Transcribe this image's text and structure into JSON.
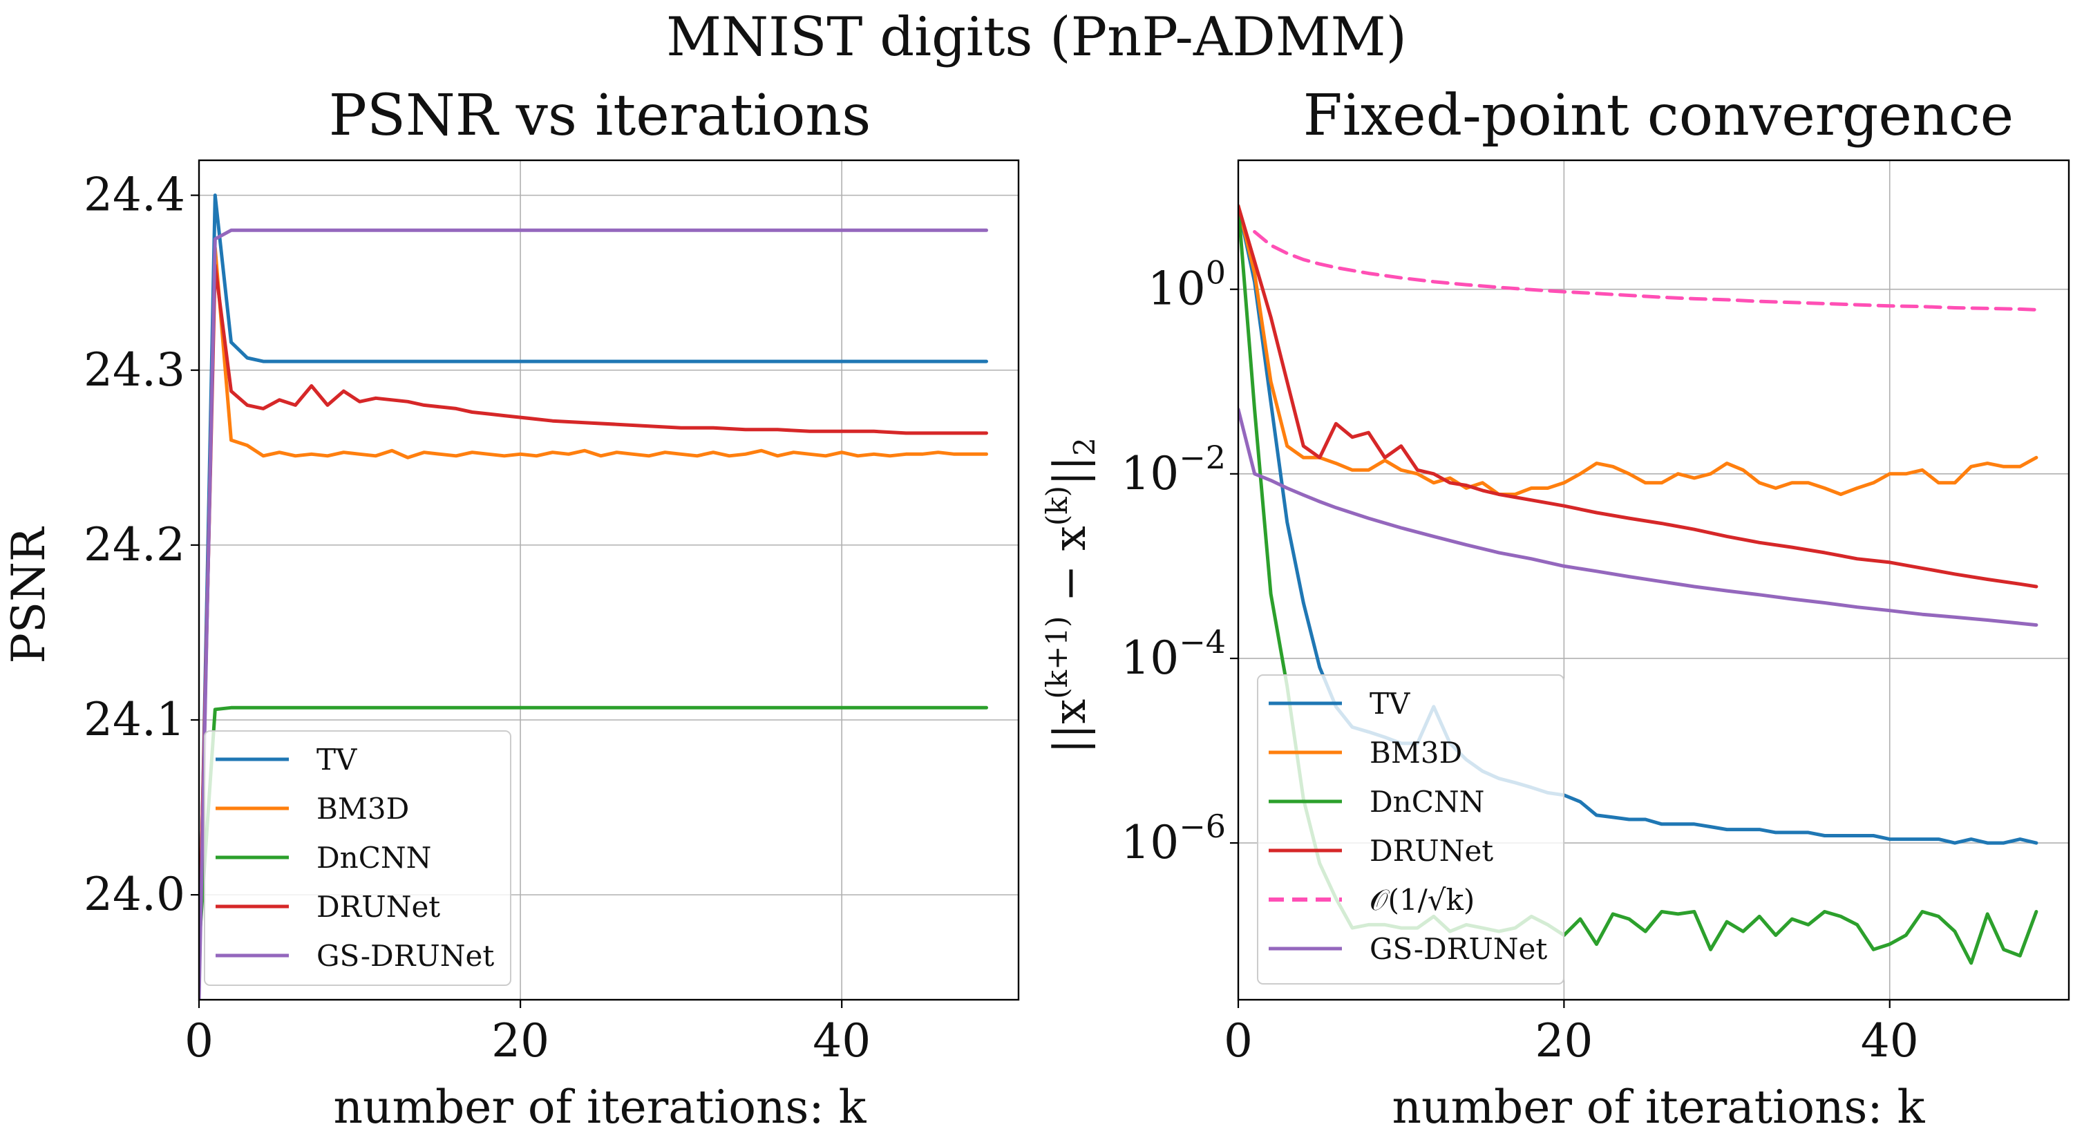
{
  "suptitle": "MNIST digits (PnP-ADMM)",
  "colors": {
    "TV": "#1f77b4",
    "BM3D": "#ff7f0e",
    "DnCNN": "#2ca02c",
    "DRUNet": "#d62728",
    "GS-DRUNet": "#9467bd",
    "ref": "#ff4fb5"
  },
  "chart_data": [
    {
      "type": "line",
      "title": "PSNR vs iterations",
      "xlabel": "number of iterations: k",
      "ylabel": "PSNR",
      "xlim": [
        0,
        51
      ],
      "ylim": [
        23.94,
        24.42
      ],
      "xticks": [
        0,
        20,
        40
      ],
      "yticks": [
        24.0,
        24.1,
        24.2,
        24.3,
        24.4
      ],
      "ytick_labels": [
        "24.0",
        "24.1",
        "24.2",
        "24.3",
        "24.4"
      ],
      "grid": true,
      "legend_placement": "lower-left",
      "series": [
        {
          "name": "TV",
          "x": [
            0,
            1,
            2,
            3,
            4,
            5,
            6,
            10,
            20,
            30,
            40,
            49
          ],
          "y": [
            23.95,
            24.4,
            24.316,
            24.307,
            24.305,
            24.305,
            24.305,
            24.305,
            24.305,
            24.305,
            24.305,
            24.305
          ]
        },
        {
          "name": "BM3D",
          "x": [
            0,
            1,
            2,
            3,
            4,
            5,
            6,
            7,
            8,
            9,
            10,
            11,
            12,
            13,
            14,
            15,
            16,
            17,
            18,
            19,
            20,
            21,
            22,
            23,
            24,
            25,
            26,
            27,
            28,
            29,
            30,
            31,
            32,
            33,
            34,
            35,
            36,
            37,
            38,
            39,
            40,
            41,
            42,
            43,
            44,
            45,
            46,
            47,
            48,
            49
          ],
          "y": [
            23.95,
            24.37,
            24.26,
            24.257,
            24.251,
            24.253,
            24.251,
            24.252,
            24.251,
            24.253,
            24.252,
            24.251,
            24.254,
            24.25,
            24.253,
            24.252,
            24.251,
            24.253,
            24.252,
            24.251,
            24.252,
            24.251,
            24.253,
            24.252,
            24.254,
            24.251,
            24.253,
            24.252,
            24.251,
            24.253,
            24.252,
            24.251,
            24.253,
            24.251,
            24.252,
            24.254,
            24.251,
            24.253,
            24.252,
            24.251,
            24.253,
            24.251,
            24.252,
            24.251,
            24.252,
            24.252,
            24.253,
            24.252,
            24.252,
            24.252
          ]
        },
        {
          "name": "DnCNN",
          "x": [
            0,
            1,
            2,
            3,
            10,
            20,
            30,
            40,
            49
          ],
          "y": [
            23.97,
            24.106,
            24.107,
            24.107,
            24.107,
            24.107,
            24.107,
            24.107,
            24.107
          ]
        },
        {
          "name": "DRUNet",
          "x": [
            0,
            1,
            2,
            3,
            4,
            5,
            6,
            7,
            8,
            9,
            10,
            11,
            12,
            13,
            14,
            15,
            16,
            17,
            18,
            19,
            20,
            22,
            24,
            26,
            28,
            30,
            32,
            34,
            36,
            38,
            40,
            42,
            44,
            46,
            48,
            49
          ],
          "y": [
            23.96,
            24.36,
            24.288,
            24.28,
            24.278,
            24.283,
            24.28,
            24.291,
            24.28,
            24.288,
            24.282,
            24.284,
            24.283,
            24.282,
            24.28,
            24.279,
            24.278,
            24.276,
            24.275,
            24.274,
            24.273,
            24.271,
            24.27,
            24.269,
            24.268,
            24.267,
            24.267,
            24.266,
            24.266,
            24.265,
            24.265,
            24.265,
            24.264,
            24.264,
            24.264,
            24.264
          ]
        },
        {
          "name": "GS-DRUNet",
          "x": [
            0,
            1,
            2,
            3,
            10,
            20,
            30,
            40,
            49
          ],
          "y": [
            23.94,
            24.375,
            24.38,
            24.38,
            24.38,
            24.38,
            24.38,
            24.38,
            24.38
          ]
        }
      ]
    },
    {
      "type": "line",
      "title": "Fixed-point convergence",
      "xlabel": "number of iterations: k",
      "ylabel": "||x(k+1) − x(k)||2",
      "yscale": "log",
      "xlim": [
        0,
        51
      ],
      "ylim": [
        2e-08,
        25
      ],
      "xticks": [
        0,
        20,
        40
      ],
      "yticks": [
        1,
        0.01,
        0.0001,
        1e-06
      ],
      "ytick_base": "10",
      "ytick_exponents": [
        "0",
        "−2",
        "−4",
        "−6"
      ],
      "grid": true,
      "legend_placement": "lower-left",
      "series": [
        {
          "name": "TV",
          "x": [
            0,
            1,
            2,
            3,
            4,
            5,
            6,
            7,
            8,
            9,
            10,
            11,
            12,
            13,
            14,
            15,
            16,
            17,
            18,
            19,
            20,
            21,
            22,
            23,
            24,
            25,
            26,
            27,
            28,
            29,
            30,
            31,
            32,
            33,
            34,
            35,
            36,
            37,
            38,
            39,
            40,
            41,
            42,
            43,
            44,
            45,
            46,
            47,
            48,
            49
          ],
          "y": [
            8,
            1.2,
            0.06,
            0.003,
            0.0004,
            8e-05,
            3e-05,
            1.8e-05,
            1.6e-05,
            1.4e-05,
            1.2e-05,
            1.2e-05,
            3e-05,
            1.2e-05,
            8e-06,
            6e-06,
            5e-06,
            4.5e-06,
            4e-06,
            3.5e-06,
            3.3e-06,
            2.8e-06,
            2e-06,
            1.9e-06,
            1.8e-06,
            1.8e-06,
            1.6e-06,
            1.6e-06,
            1.6e-06,
            1.5e-06,
            1.4e-06,
            1.4e-06,
            1.4e-06,
            1.3e-06,
            1.3e-06,
            1.3e-06,
            1.2e-06,
            1.2e-06,
            1.2e-06,
            1.2e-06,
            1.1e-06,
            1.1e-06,
            1.1e-06,
            1.1e-06,
            1e-06,
            1.1e-06,
            1e-06,
            1e-06,
            1.1e-06,
            1e-06
          ]
        },
        {
          "name": "BM3D",
          "x": [
            0,
            1,
            2,
            3,
            4,
            5,
            6,
            7,
            8,
            9,
            10,
            11,
            12,
            13,
            14,
            15,
            16,
            17,
            18,
            19,
            20,
            21,
            22,
            23,
            24,
            25,
            26,
            27,
            28,
            29,
            30,
            31,
            32,
            33,
            34,
            35,
            36,
            37,
            38,
            39,
            40,
            41,
            42,
            43,
            44,
            45,
            46,
            47,
            48,
            49
          ],
          "y": [
            8,
            1.5,
            0.1,
            0.02,
            0.015,
            0.015,
            0.013,
            0.011,
            0.011,
            0.014,
            0.011,
            0.01,
            0.008,
            0.009,
            0.007,
            0.008,
            0.006,
            0.006,
            0.007,
            0.007,
            0.008,
            0.01,
            0.013,
            0.012,
            0.01,
            0.008,
            0.008,
            0.01,
            0.009,
            0.01,
            0.013,
            0.011,
            0.008,
            0.007,
            0.008,
            0.008,
            0.007,
            0.006,
            0.007,
            0.008,
            0.01,
            0.01,
            0.011,
            0.008,
            0.008,
            0.012,
            0.013,
            0.012,
            0.012,
            0.015
          ]
        },
        {
          "name": "DnCNN",
          "x": [
            0,
            1,
            2,
            3,
            4,
            5,
            6,
            7,
            8,
            9,
            10,
            11,
            12,
            13,
            14,
            15,
            16,
            17,
            18,
            19,
            20,
            21,
            22,
            23,
            24,
            25,
            26,
            27,
            28,
            29,
            30,
            31,
            32,
            33,
            34,
            35,
            36,
            37,
            38,
            39,
            40,
            41,
            42,
            43,
            44,
            45,
            46,
            47,
            48,
            49
          ],
          "y": [
            8,
            0.05,
            0.0005,
            5e-05,
            3e-06,
            6e-07,
            2.5e-07,
            1.2e-07,
            1.3e-07,
            1.3e-07,
            1.2e-07,
            1.2e-07,
            1.6e-07,
            1.1e-07,
            1.3e-07,
            1.2e-07,
            1.1e-07,
            1.2e-07,
            1.6e-07,
            1.3e-07,
            1e-07,
            1.5e-07,
            8e-08,
            1.7e-07,
            1.5e-07,
            1.1e-07,
            1.8e-07,
            1.7e-07,
            1.8e-07,
            7e-08,
            1.4e-07,
            1.1e-07,
            1.6e-07,
            1e-07,
            1.5e-07,
            1.3e-07,
            1.8e-07,
            1.6e-07,
            1.3e-07,
            7e-08,
            8e-08,
            1e-07,
            1.8e-07,
            1.6e-07,
            1.1e-07,
            5e-08,
            1.7e-07,
            7e-08,
            6e-08,
            1.8e-07
          ]
        },
        {
          "name": "DRUNet",
          "x": [
            0,
            1,
            2,
            3,
            4,
            5,
            6,
            7,
            8,
            9,
            10,
            11,
            12,
            13,
            14,
            15,
            16,
            18,
            20,
            22,
            24,
            26,
            28,
            30,
            32,
            34,
            36,
            38,
            40,
            42,
            44,
            46,
            48,
            49
          ],
          "y": [
            8,
            2,
            0.5,
            0.1,
            0.02,
            0.015,
            0.035,
            0.025,
            0.028,
            0.015,
            0.02,
            0.011,
            0.01,
            0.008,
            0.0075,
            0.0066,
            0.006,
            0.0052,
            0.0045,
            0.0038,
            0.0033,
            0.0029,
            0.0025,
            0.0021,
            0.0018,
            0.0016,
            0.0014,
            0.0012,
            0.0011,
            0.00095,
            0.00082,
            0.00072,
            0.00064,
            0.0006
          ]
        },
        {
          "name": "𝒪(1/√k)",
          "style": "dashed",
          "x": [
            1,
            2,
            3,
            4,
            5,
            6,
            8,
            10,
            12,
            14,
            16,
            18,
            20,
            22,
            24,
            26,
            28,
            30,
            32,
            34,
            36,
            38,
            40,
            42,
            44,
            46,
            48,
            49
          ],
          "y": [
            4.2,
            3.0,
            2.45,
            2.1,
            1.88,
            1.72,
            1.49,
            1.33,
            1.21,
            1.12,
            1.05,
            0.99,
            0.94,
            0.9,
            0.86,
            0.82,
            0.79,
            0.77,
            0.74,
            0.72,
            0.7,
            0.68,
            0.66,
            0.65,
            0.63,
            0.62,
            0.61,
            0.6
          ]
        },
        {
          "name": "GS-DRUNet",
          "x": [
            0,
            1,
            2,
            3,
            4,
            5,
            6,
            8,
            10,
            12,
            14,
            16,
            18,
            20,
            22,
            24,
            26,
            28,
            30,
            32,
            34,
            36,
            38,
            40,
            42,
            44,
            46,
            48,
            49
          ],
          "y": [
            0.05,
            0.01,
            0.0085,
            0.007,
            0.0059,
            0.005,
            0.0043,
            0.0033,
            0.0026,
            0.0021,
            0.0017,
            0.0014,
            0.0012,
            0.001,
            0.00088,
            0.00077,
            0.00068,
            0.0006,
            0.00054,
            0.00049,
            0.00044,
            0.0004,
            0.00036,
            0.00033,
            0.0003,
            0.00028,
            0.00026,
            0.00024,
            0.00023
          ]
        }
      ]
    }
  ]
}
